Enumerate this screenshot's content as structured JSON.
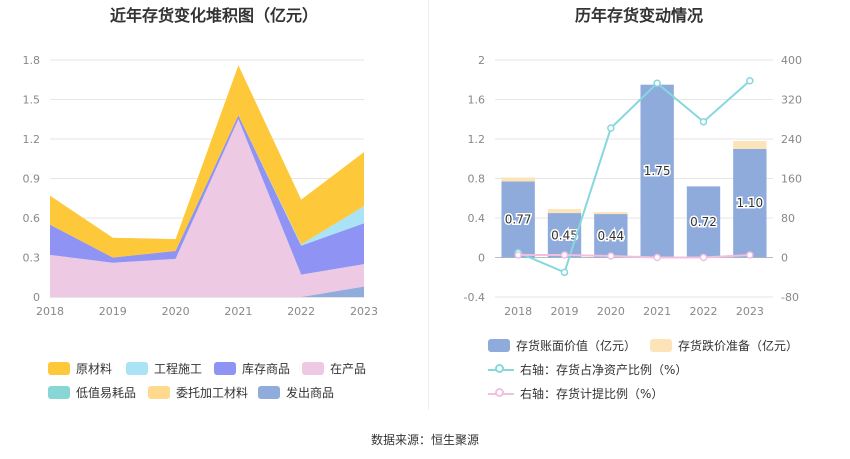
{
  "left_title": "近年存货变化堆积图（亿元）",
  "right_title": "历年存货变动情况",
  "source": "数据来源：恒生聚源",
  "colors": {
    "raw": "#fdc83a",
    "engineering": "#a9e3f5",
    "inventory": "#8f94f4",
    "wip": "#edc9e3",
    "lowvalue": "#86d7d5",
    "consigned": "#fed98e",
    "shipped": "#90acdc",
    "book_bar": "#8eabdb",
    "reserve_bar": "#fde3b8",
    "ratio_line": "#86d7de",
    "provision_line": "#f1bfe0"
  },
  "left_legend": [
    {
      "label": "原材料",
      "color_key": "raw"
    },
    {
      "label": "工程施工",
      "color_key": "engineering"
    },
    {
      "label": "库存商品",
      "color_key": "inventory"
    },
    {
      "label": "在产品",
      "color_key": "wip"
    },
    {
      "label": "低值易耗品",
      "color_key": "lowvalue"
    },
    {
      "label": "委托加工材料",
      "color_key": "consigned"
    },
    {
      "label": "发出商品",
      "color_key": "shipped"
    }
  ],
  "right_legend": [
    {
      "label": "存货账面价值（亿元）",
      "color_key": "book_bar",
      "kind": "bar"
    },
    {
      "label": "存货跌价准备（亿元）",
      "color_key": "reserve_bar",
      "kind": "bar"
    },
    {
      "label": "右轴：存货占净资产比例（%）",
      "color_key": "ratio_line",
      "kind": "line"
    },
    {
      "label": "右轴：存货计提比例（%）",
      "color_key": "provision_line",
      "kind": "line"
    }
  ],
  "chart_data": [
    {
      "type": "area",
      "stacked": true,
      "title": "近年存货变化堆积图（亿元）",
      "categories": [
        "2018",
        "2019",
        "2020",
        "2021",
        "2022",
        "2023"
      ],
      "y_ticks": [
        "0",
        "0.3",
        "0.6",
        "0.9",
        "1.2",
        "1.5",
        "1.8"
      ],
      "ylim": [
        0,
        1.8
      ],
      "grid": true,
      "series": [
        {
          "name": "发出商品",
          "color_key": "shipped",
          "values": [
            0,
            0,
            0,
            0,
            0,
            0.08
          ]
        },
        {
          "name": "在产品",
          "color_key": "wip",
          "values": [
            0.32,
            0.26,
            0.29,
            1.35,
            0.17,
            0.17
          ]
        },
        {
          "name": "库存商品",
          "color_key": "inventory",
          "values": [
            0.23,
            0.04,
            0.06,
            0.03,
            0.22,
            0.31
          ]
        },
        {
          "name": "工程施工",
          "color_key": "engineering",
          "values": [
            0,
            0,
            0,
            0,
            0.01,
            0.13
          ]
        },
        {
          "name": "原材料",
          "color_key": "raw",
          "values": [
            0.22,
            0.15,
            0.09,
            0.38,
            0.34,
            0.41
          ]
        }
      ]
    },
    {
      "type": "bar",
      "title": "历年存货变动情况",
      "categories": [
        "2018",
        "2019",
        "2020",
        "2021",
        "2022",
        "2023"
      ],
      "left_axis": {
        "ticks": [
          "-0.4",
          "0",
          "0.4",
          "0.8",
          "1.2",
          "1.6",
          "2"
        ],
        "ylim": [
          -0.4,
          2
        ]
      },
      "right_axis": {
        "ticks": [
          "-80",
          "0",
          "80",
          "160",
          "240",
          "320",
          "400"
        ],
        "ylim": [
          -80,
          400
        ]
      },
      "bars": [
        {
          "name": "存货账面价值（亿元）",
          "color_key": "book_bar",
          "values": [
            0.77,
            0.45,
            0.44,
            1.75,
            0.72,
            1.1
          ],
          "labels": [
            "0.77",
            "0.45",
            "0.44",
            "1.75",
            "0.72",
            "1.10"
          ]
        },
        {
          "name": "存货跌价准备（亿元）",
          "color_key": "reserve_bar",
          "values": [
            0.04,
            0.04,
            0.02,
            0,
            0,
            0.08
          ]
        }
      ],
      "lines": [
        {
          "name": "右轴：存货占净资产比例（%）",
          "color_key": "ratio_line",
          "values": [
            10,
            -30,
            262,
            353,
            275,
            358
          ]
        },
        {
          "name": "右轴：存货计提比例（%）",
          "color_key": "provision_line",
          "values": [
            5,
            5,
            3,
            0,
            0,
            5
          ]
        }
      ]
    }
  ]
}
